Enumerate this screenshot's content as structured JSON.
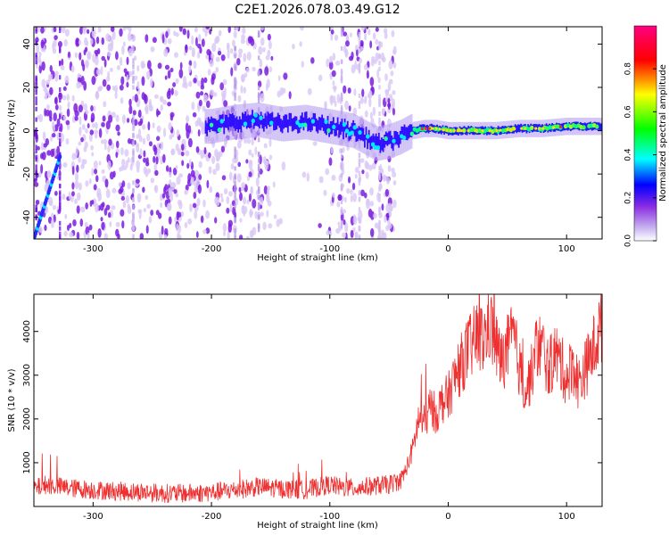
{
  "title": "C2E1.2026.078.03.49.G12",
  "chart_data": [
    {
      "type": "heatmap",
      "title": "C2E1.2026.078.03.49.G12",
      "xlabel": "Height of straight line (km)",
      "ylabel": "Frequency (Hz)",
      "xlim": [
        -350,
        130
      ],
      "ylim": [
        -50,
        48
      ],
      "xticks": [
        -300,
        -200,
        -100,
        0,
        100
      ],
      "yticks": [
        -40,
        -20,
        0,
        20,
        40
      ],
      "colorbar": {
        "label": "Normalized spectral amplitude",
        "range": [
          0,
          1
        ],
        "ticks": [
          0.0,
          0.2,
          0.4,
          0.6,
          0.8
        ],
        "tick_labels": [
          "0.0",
          "0.2",
          "0.4",
          "0.6",
          "0.8"
        ],
        "colormap": [
          "#ffffff",
          "#8a2be2",
          "#0000ff",
          "#00ffff",
          "#00ff00",
          "#ffff00",
          "#ff0000",
          "#ff0080"
        ]
      },
      "ridge": {
        "description": "dominant frequency track",
        "x": [
          -200,
          -180,
          -160,
          -140,
          -120,
          -100,
          -80,
          -70,
          -60,
          -50,
          -40,
          -30,
          -20,
          -10,
          0,
          20,
          40,
          60,
          80,
          100,
          130
        ],
        "y": [
          2,
          4,
          5,
          3,
          4,
          2,
          0,
          -3,
          -6,
          -5,
          -3,
          0,
          1,
          1,
          0,
          0,
          0,
          1,
          1,
          2,
          2
        ],
        "peak_x": [
          -20,
          100
        ]
      },
      "grid": false
    },
    {
      "type": "line",
      "xlabel": "Height of straight line (km)",
      "ylabel": "SNR (10 * v/v)",
      "xlim": [
        -350,
        130
      ],
      "ylim": [
        0,
        4850
      ],
      "xticks": [
        -300,
        -200,
        -100,
        0,
        100
      ],
      "yticks": [
        1000,
        2000,
        3000,
        4000
      ],
      "color": "#ee3030",
      "x": [
        -350,
        -340,
        -320,
        -300,
        -280,
        -260,
        -240,
        -220,
        -200,
        -180,
        -160,
        -140,
        -120,
        -100,
        -90,
        -80,
        -60,
        -50,
        -40,
        -35,
        -30,
        -25,
        -20,
        -15,
        -10,
        -5,
        0,
        5,
        10,
        15,
        20,
        25,
        30,
        35,
        40,
        45,
        50,
        55,
        60,
        65,
        70,
        75,
        80,
        85,
        90,
        95,
        100,
        105,
        110,
        115,
        120,
        125,
        130
      ],
      "y": [
        400,
        500,
        420,
        380,
        350,
        330,
        300,
        300,
        320,
        380,
        450,
        400,
        380,
        500,
        430,
        420,
        480,
        500,
        600,
        900,
        1300,
        2000,
        1900,
        2300,
        2100,
        2400,
        2500,
        2900,
        3200,
        3500,
        3700,
        3900,
        3800,
        4200,
        3700,
        3300,
        3600,
        3900,
        3200,
        2600,
        3000,
        3700,
        3600,
        3100,
        3500,
        3300,
        2900,
        3300,
        2800,
        3100,
        3400,
        3800,
        4200
      ],
      "grid": false
    }
  ]
}
